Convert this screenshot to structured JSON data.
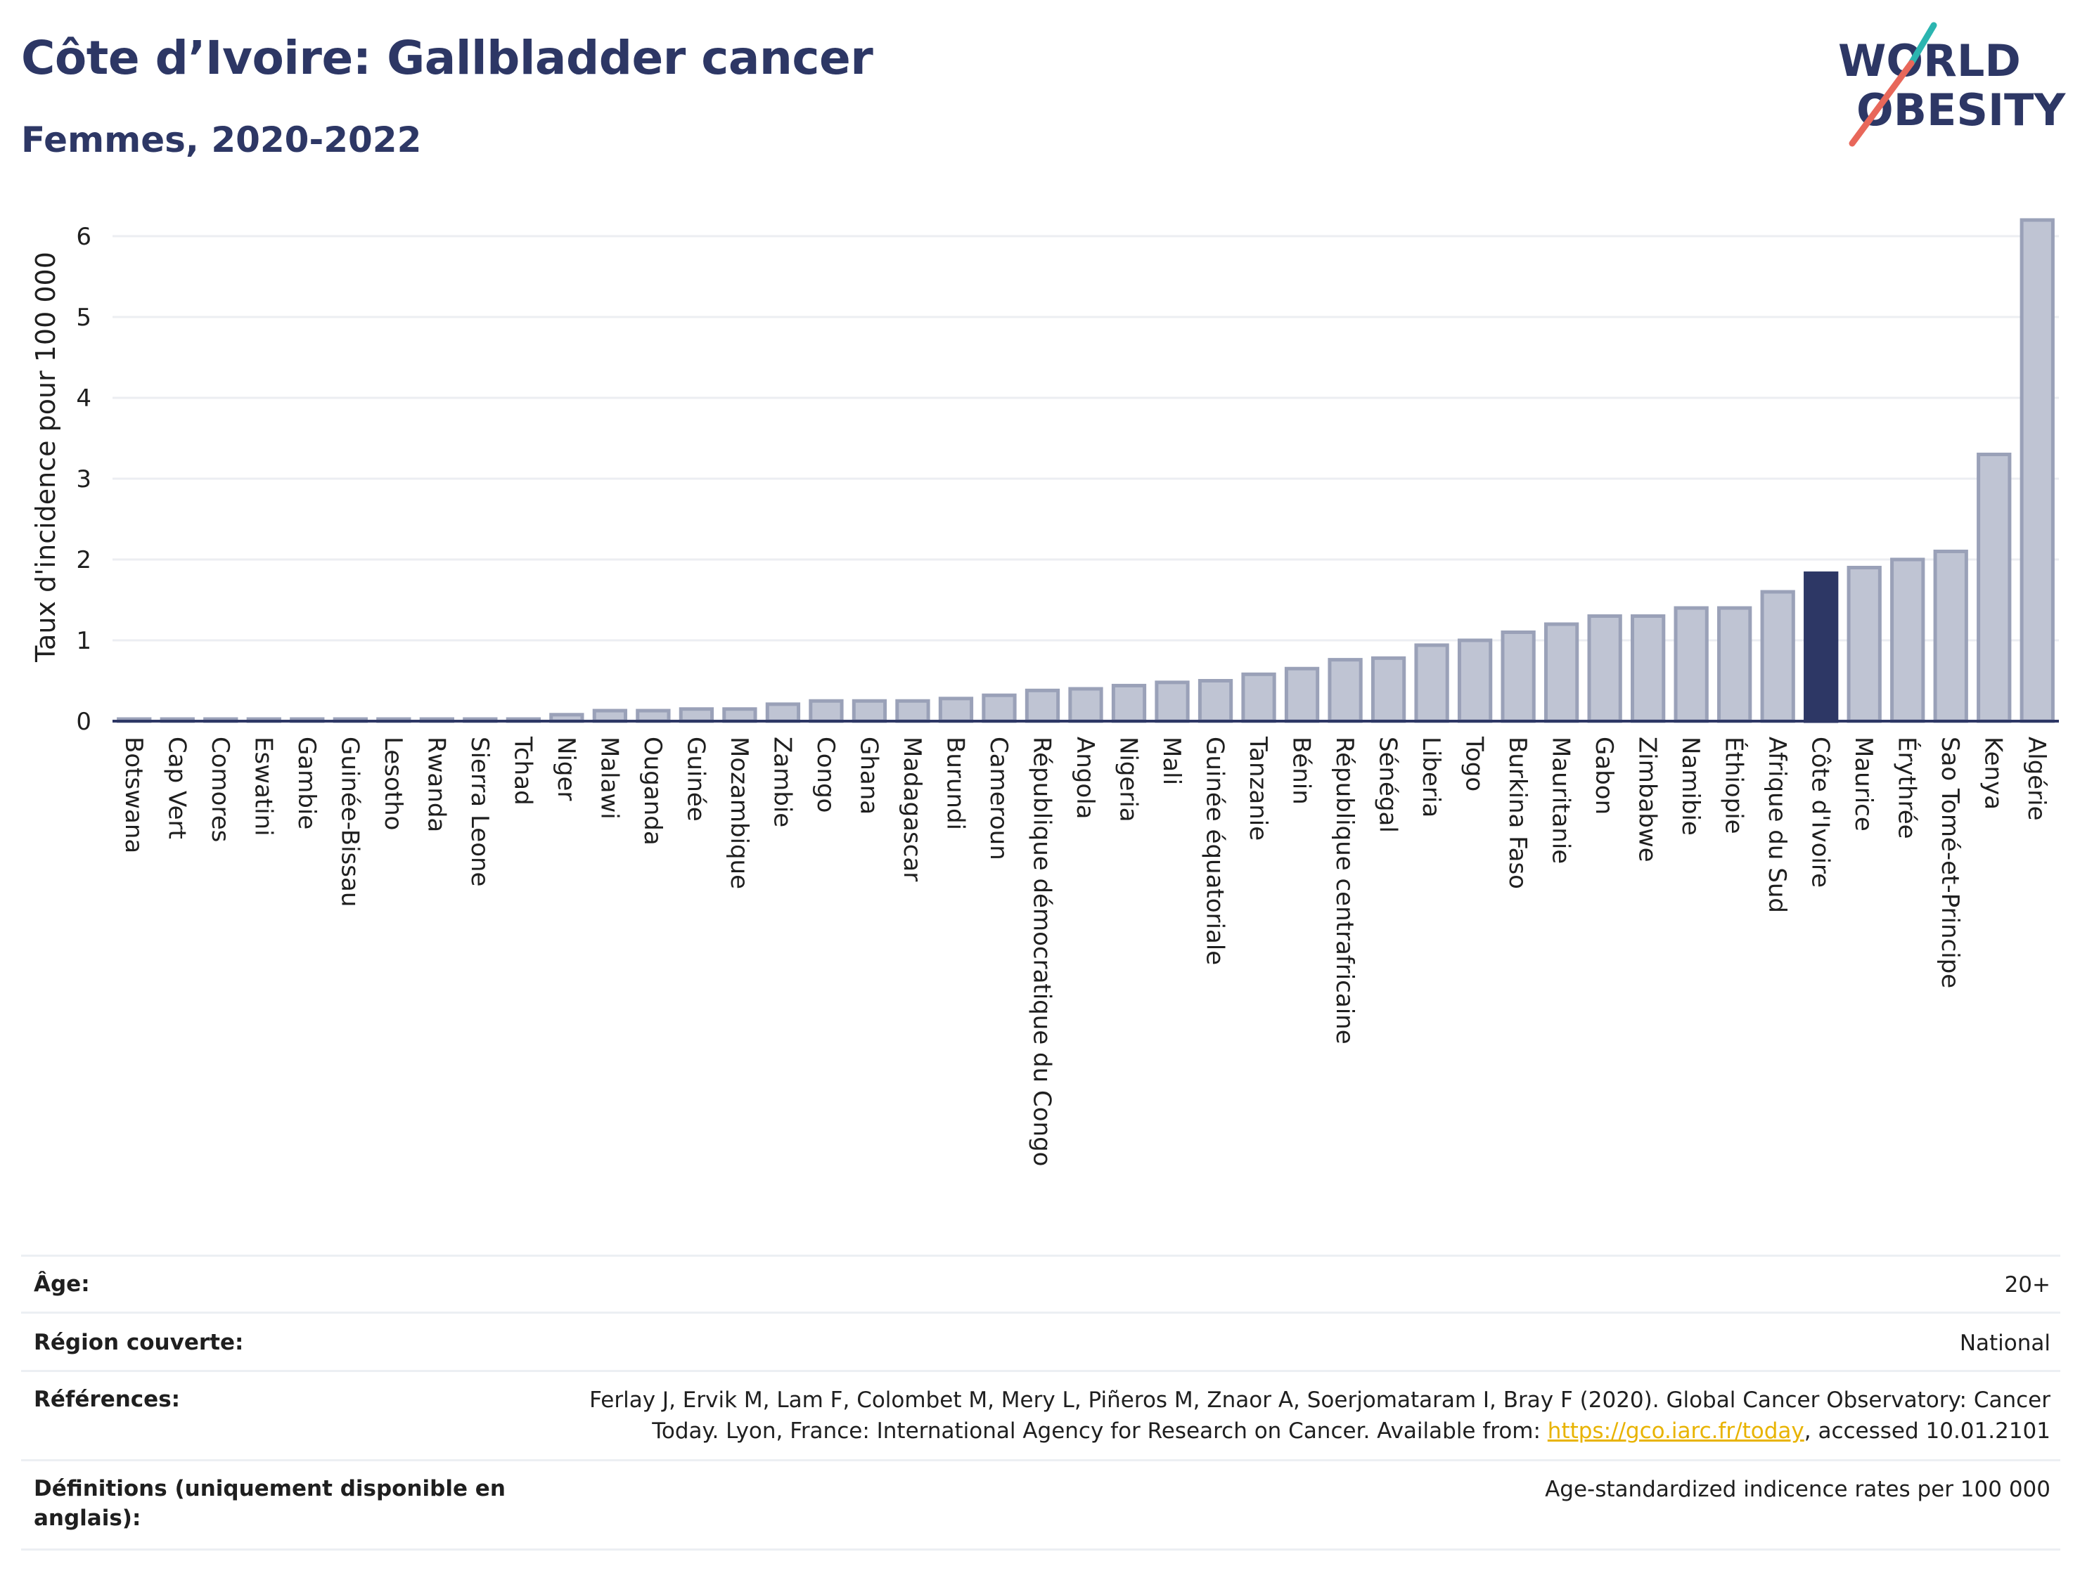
{
  "header": {
    "title": "Côte d’Ivoire: Gallbladder cancer",
    "subtitle": "Femmes, 2020-2022"
  },
  "logo": {
    "line1": "WORLD",
    "line2": "OBESITY",
    "colors": {
      "text": "#2d3765",
      "slash_teal": "#2bb5b0",
      "slash_red": "#e8675a"
    }
  },
  "colors": {
    "bar_fill": "#bfc4d3",
    "bar_stroke": "#9aa1b8",
    "highlight": "#2d3765",
    "grid": "#eceef2",
    "axis": "#2d3765"
  },
  "chart_data": {
    "type": "bar",
    "title": "",
    "xlabel": "",
    "ylabel": "Taux d'incidence pour 100 000",
    "ylim": [
      0,
      6.3
    ],
    "yticks": [
      0,
      1,
      2,
      3,
      4,
      5,
      6
    ],
    "highlight": "Côte d'Ivoire",
    "grid": true,
    "categories": [
      "Botswana",
      "Cap Vert",
      "Comores",
      "Eswatini",
      "Gambie",
      "Guinée-Bissau",
      "Lesotho",
      "Rwanda",
      "Sierra Leone",
      "Tchad",
      "Niger",
      "Malawi",
      "Ouganda",
      "Guinée",
      "Mozambique",
      "Zambie",
      "Congo",
      "Ghana",
      "Madagascar",
      "Burundi",
      "Cameroun",
      "République démocratique du Congo",
      "Angola",
      "Nigeria",
      "Mali",
      "Guinée équatoriale",
      "Tanzanie",
      "Bénin",
      "République centrafricaine",
      "Sénégal",
      "Liberia",
      "Togo",
      "Burkina Faso",
      "Mauritanie",
      "Gabon",
      "Zimbabwe",
      "Namibie",
      "Éthiopie",
      "Afrique du Sud",
      "Côte d'Ivoire",
      "Maurice",
      "Érythrée",
      "Sao Tomé-et-Principe",
      "Kenya",
      "Algérie"
    ],
    "values": [
      0.01,
      0.01,
      0.01,
      0.01,
      0.01,
      0.01,
      0.01,
      0.01,
      0.01,
      0.01,
      0.08,
      0.13,
      0.13,
      0.15,
      0.15,
      0.21,
      0.25,
      0.25,
      0.25,
      0.28,
      0.32,
      0.38,
      0.4,
      0.44,
      0.48,
      0.5,
      0.58,
      0.65,
      0.76,
      0.78,
      0.94,
      1.0,
      1.1,
      1.2,
      1.3,
      1.3,
      1.4,
      1.4,
      1.6,
      1.83,
      1.9,
      2.0,
      2.1,
      3.3,
      6.2
    ]
  },
  "info": {
    "age_label": "Âge:",
    "age_value": "20+",
    "region_label": "Région couverte:",
    "region_value": "National",
    "references_label": "Références:",
    "references_text_1": "Ferlay J, Ervik M, Lam F, Colombet M, Mery L, Piñeros M, Znaor A, Soerjomataram I, Bray F (2020). Global Cancer Observatory: Cancer",
    "references_text_2": "Today. Lyon, France: International Agency for Research on Cancer. Available from: ",
    "references_link": "https://gco.iarc.fr/today",
    "references_text_3": ", accessed 10.01.2101",
    "definitions_label": "Définitions (uniquement disponible en anglais):",
    "definitions_value": "Age-standardized indicence rates per 100 000"
  }
}
